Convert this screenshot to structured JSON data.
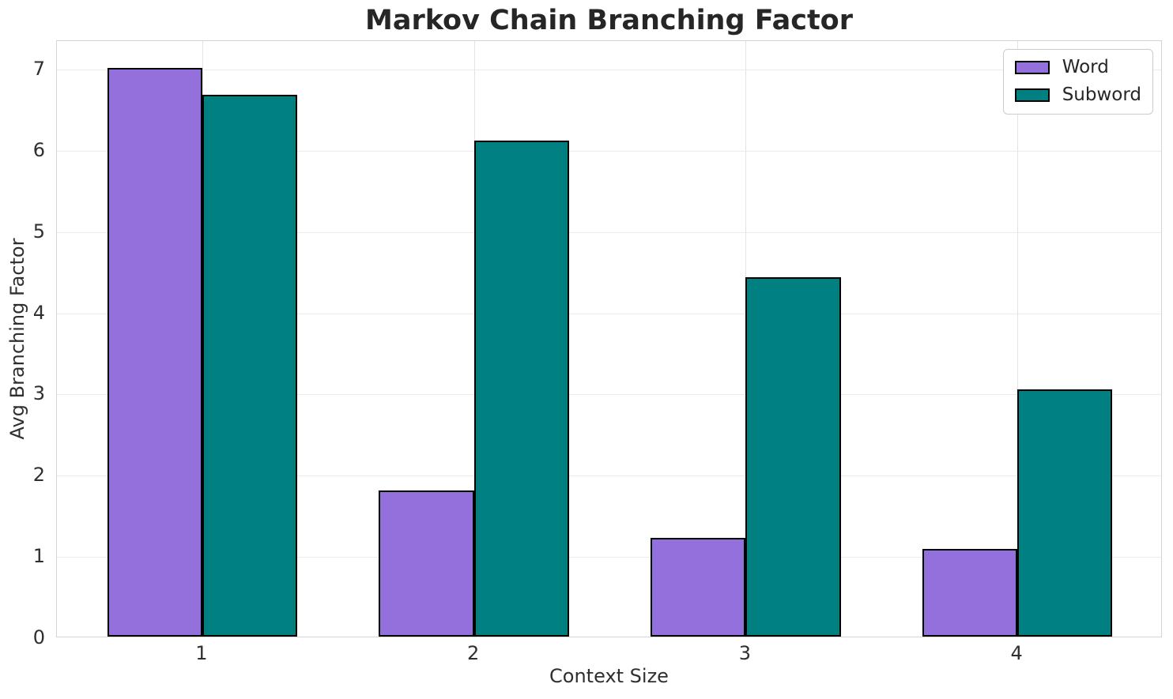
{
  "figure": {
    "background": "#ffffff"
  },
  "chart_data": {
    "type": "bar",
    "title": "Markov Chain Branching Factor",
    "xlabel": "Context Size",
    "ylabel": "Avg Branching Factor",
    "categories": [
      1,
      2,
      3,
      4
    ],
    "series": [
      {
        "name": "Word",
        "color": "#9370DB",
        "values": [
          7.0,
          1.8,
          1.22,
          1.08
        ]
      },
      {
        "name": "Subword",
        "color": "#008080",
        "values": [
          6.67,
          6.11,
          4.42,
          3.04
        ]
      }
    ],
    "bar_width": 0.35,
    "bar_edge_color": "#000000",
    "yticks": [
      0,
      1,
      2,
      3,
      4,
      5,
      6,
      7
    ],
    "xticks": [
      "1",
      "2",
      "3",
      "4"
    ],
    "ylim": [
      0,
      7.35
    ],
    "xlim": [
      0.465,
      4.535
    ],
    "grid": true,
    "gridline_color_h": "#ebebeb",
    "gridline_color_v": "#e3e3e3",
    "legend_position": "upper right",
    "text_color": "#262626"
  }
}
